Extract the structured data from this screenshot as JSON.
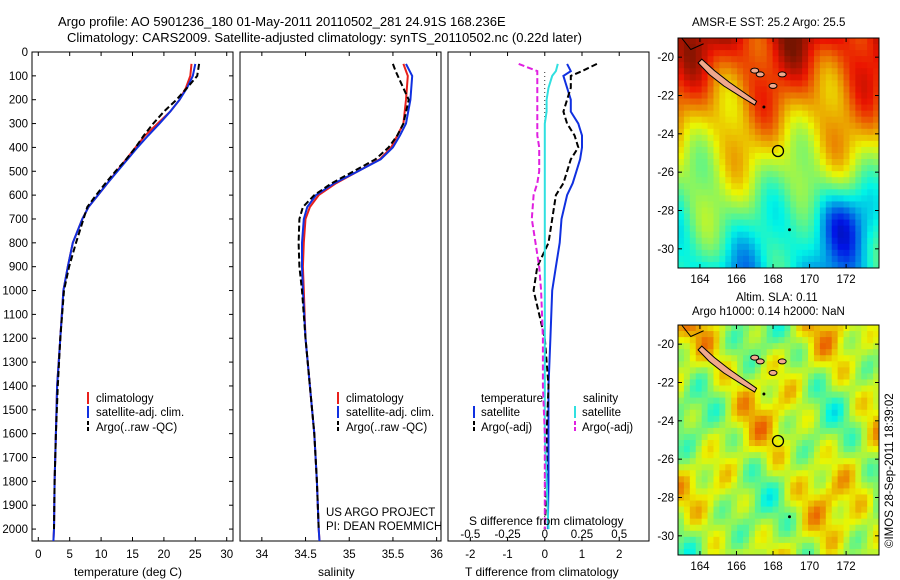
{
  "header": {
    "line1": "Argo profile: AO 5901236_180 01-May-2011 20110502_281 24.91S 168.236E",
    "line2": "Climatology: CARS2009. Satellite-adjusted climatology: synTS_20110502.nc (0.22d later)"
  },
  "colors": {
    "climatology": "#e8201c",
    "satellite": "#1030e0",
    "argo": "#000000",
    "salinity_satellite": "#30e0e0",
    "salinity_argo": "#e020e0",
    "land": "#f0a88c"
  },
  "chart_data": [
    {
      "type": "line",
      "xlabel": "temperature (deg C)",
      "xlim": [
        -1,
        31
      ],
      "ylim": [
        2050,
        0
      ],
      "xticks": [
        0,
        5,
        10,
        15,
        20,
        25,
        30
      ],
      "yticks": [
        0,
        100,
        200,
        300,
        400,
        500,
        600,
        700,
        800,
        900,
        1000,
        1100,
        1200,
        1300,
        1400,
        1500,
        1600,
        1700,
        1800,
        1900,
        2000
      ],
      "ytick_labels": [
        "0",
        "100",
        "200",
        "300",
        "400",
        "500",
        "600",
        "700",
        "800",
        "900",
        "1000",
        "1100",
        "1200",
        "1300",
        "1400",
        "1500",
        "1600",
        "1700",
        "1800",
        "1900",
        "2000"
      ],
      "legend": [
        "climatology",
        "satellite-adj. clim.",
        "Argo(..raw -QC)"
      ],
      "series": [
        {
          "name": "climatology",
          "color": "#e8201c",
          "style": "solid",
          "x": [
            24.4,
            24.2,
            23.5,
            22.5,
            21,
            19,
            17,
            15.5,
            14,
            12.5,
            11,
            9.5,
            8,
            7,
            5.5,
            4.7,
            4,
            3.5,
            3,
            2.8,
            2.6,
            2.5,
            2.4
          ],
          "y": [
            50,
            100,
            150,
            200,
            250,
            300,
            350,
            400,
            450,
            500,
            550,
            600,
            650,
            700,
            800,
            900,
            1000,
            1200,
            1400,
            1600,
            1800,
            2000,
            2050
          ]
        },
        {
          "name": "satellite-adj. clim.",
          "color": "#1030e0",
          "style": "solid",
          "x": [
            25,
            24.6,
            23.7,
            22.5,
            21,
            19.3,
            17.5,
            15.8,
            14.2,
            12.6,
            11,
            9.5,
            8,
            7,
            5.5,
            4.7,
            4,
            3.5,
            3,
            2.8,
            2.6,
            2.5,
            2.4
          ],
          "y": [
            50,
            100,
            150,
            200,
            250,
            300,
            350,
            400,
            450,
            500,
            550,
            600,
            650,
            700,
            800,
            900,
            1000,
            1200,
            1400,
            1600,
            1800,
            2000,
            2050
          ]
        },
        {
          "name": "Argo(..raw -QC)",
          "color": "#000000",
          "style": "dashed",
          "x": [
            25.6,
            25.3,
            23.7,
            22,
            20,
            18.3,
            16.8,
            15.5,
            14,
            12.3,
            10.7,
            9.2,
            7.8,
            7.2,
            6,
            4.9,
            4.1,
            3.5,
            3.1,
            2.8,
            2.6,
            2.5
          ],
          "y": [
            50,
            100,
            150,
            200,
            250,
            300,
            350,
            400,
            450,
            500,
            550,
            600,
            650,
            700,
            800,
            900,
            1000,
            1200,
            1400,
            1600,
            1800,
            2000
          ]
        }
      ]
    },
    {
      "type": "line",
      "xlabel": "salinity",
      "xlim": [
        33.75,
        36.05
      ],
      "ylim": [
        2050,
        0
      ],
      "xticks": [
        34,
        34.5,
        35,
        35.5,
        36
      ],
      "xtick_labels": [
        "34",
        "34.5",
        "35",
        "35.5",
        "36"
      ],
      "legend": [
        "climatology",
        "satellite-adj. clim.",
        "Argo(..raw -QC)"
      ],
      "annotation": [
        "US ARGO PROJECT",
        "PI: DEAN ROEMMICH"
      ],
      "series": [
        {
          "name": "climatology",
          "color": "#e8201c",
          "style": "solid",
          "x": [
            35.62,
            35.67,
            35.65,
            35.62,
            35.55,
            35.48,
            35.35,
            35.1,
            34.85,
            34.65,
            34.55,
            34.5,
            34.48,
            34.47,
            34.48,
            34.5,
            34.55,
            34.6,
            34.63,
            34.65,
            34.66
          ],
          "y": [
            50,
            100,
            200,
            300,
            350,
            400,
            450,
            500,
            550,
            600,
            650,
            700,
            800,
            900,
            1000,
            1200,
            1400,
            1600,
            1800,
            2000,
            2050
          ]
        },
        {
          "name": "satellite-adj. clim.",
          "color": "#1030e0",
          "style": "solid",
          "x": [
            35.65,
            35.72,
            35.7,
            35.65,
            35.58,
            35.5,
            35.36,
            35.1,
            34.83,
            34.62,
            34.52,
            34.48,
            34.46,
            34.46,
            34.47,
            34.5,
            34.55,
            34.6,
            34.63,
            34.65,
            34.66
          ],
          "y": [
            50,
            100,
            200,
            300,
            350,
            400,
            450,
            500,
            550,
            600,
            650,
            700,
            800,
            900,
            1000,
            1200,
            1400,
            1600,
            1800,
            2000,
            2050
          ]
        },
        {
          "name": "Argo(..raw -QC)",
          "color": "#000000",
          "style": "dashed",
          "x": [
            35.5,
            35.53,
            35.68,
            35.62,
            35.55,
            35.45,
            35.3,
            35.05,
            34.8,
            34.6,
            34.47,
            34.43,
            34.42,
            34.43,
            34.46,
            34.5,
            34.55,
            34.6,
            34.63,
            34.65
          ],
          "y": [
            50,
            80,
            200,
            300,
            350,
            400,
            450,
            500,
            550,
            600,
            650,
            700,
            800,
            900,
            1000,
            1200,
            1400,
            1600,
            1800,
            2000
          ]
        }
      ]
    },
    {
      "type": "line",
      "xlabel": "T difference from climatology",
      "xlabel_top": "S difference from climatology",
      "xlim": [
        -2.6,
        2.8
      ],
      "ylim": [
        2050,
        0
      ],
      "xticks_bottom": [
        -2,
        -1,
        0,
        1,
        2
      ],
      "xticks_top": [
        "-0.5",
        "-0.25",
        "0",
        "0.25",
        "0.5"
      ],
      "legend_headers": [
        "temperature",
        "salinity"
      ],
      "legend": [
        "satellite",
        "Argo(-adj)",
        "satellite",
        "Argo(-adj)"
      ],
      "series": [
        {
          "name": "satellite",
          "group": "temperature",
          "color": "#1030e0",
          "style": "solid",
          "x": [
            0.6,
            0.7,
            0.5,
            0.6,
            0.7,
            0.7,
            0.9,
            1.0,
            1.0,
            0.95,
            0.85,
            0.75,
            0.6,
            0.45,
            0.4,
            0.3,
            0.2,
            0.15,
            0.1,
            0.1,
            0.1,
            0.08
          ],
          "y": [
            50,
            80,
            100,
            150,
            200,
            250,
            300,
            350,
            400,
            450,
            500,
            550,
            600,
            700,
            800,
            900,
            1000,
            1200,
            1400,
            1600,
            1800,
            2000
          ]
        },
        {
          "name": "Argo(-adj)",
          "group": "temperature",
          "color": "#000000",
          "style": "dashed",
          "x": [
            1.4,
            1.0,
            0.7,
            0.7,
            0.6,
            0.5,
            0.6,
            0.8,
            0.9,
            0.7,
            0.6,
            0.5,
            0.3,
            0.2,
            0.1,
            -0.2,
            -0.3,
            0,
            0.1,
            0.05,
            0.05,
            0
          ],
          "y": [
            50,
            80,
            100,
            150,
            200,
            250,
            300,
            350,
            400,
            450,
            500,
            550,
            600,
            700,
            800,
            900,
            1000,
            1200,
            1400,
            1600,
            1800,
            2000
          ]
        },
        {
          "name": "satellite",
          "group": "salinity",
          "color": "#30e0e0",
          "style": "solid",
          "x": [
            0.35,
            0.3,
            0.2,
            0.1,
            0.05,
            0.05,
            0,
            0,
            0,
            0,
            0,
            0,
            0,
            0,
            0,
            0,
            0,
            0,
            0,
            0,
            0.05,
            0.1
          ],
          "y": [
            50,
            80,
            100,
            150,
            200,
            250,
            300,
            350,
            400,
            450,
            500,
            550,
            600,
            700,
            800,
            900,
            1000,
            1200,
            1400,
            1600,
            1800,
            2000
          ]
        },
        {
          "name": "Argo(-adj)",
          "group": "salinity",
          "color": "#e020e0",
          "style": "dashed",
          "x": [
            -0.7,
            -0.2,
            -0.2,
            -0.2,
            -0.2,
            -0.2,
            -0.2,
            -0.2,
            -0.15,
            -0.15,
            -0.15,
            -0.2,
            -0.3,
            -0.35,
            -0.25,
            -0.15,
            -0.1,
            -0.05,
            -0.05,
            0,
            0,
            0
          ],
          "y": [
            50,
            80,
            100,
            150,
            200,
            250,
            300,
            350,
            400,
            450,
            500,
            550,
            600,
            700,
            800,
            900,
            1000,
            1200,
            1400,
            1600,
            1800,
            2000
          ]
        }
      ]
    },
    {
      "type": "heatmap",
      "title": "AMSR-E SST: 25.2 Argo: 25.5",
      "xticks": [
        164,
        166,
        168,
        170,
        172
      ],
      "yticks": [
        -20,
        -22,
        -24,
        -26,
        -28,
        -30
      ],
      "xlim": [
        162.8,
        173.8
      ],
      "ylim": [
        -31,
        -19
      ]
    },
    {
      "type": "heatmap",
      "title_lines": [
        "Altim. SLA: 0.11",
        "Argo h1000: 0.14 h2000: NaN"
      ],
      "xticks": [
        164,
        166,
        168,
        170,
        172
      ],
      "yticks": [
        -20,
        -22,
        -24,
        -26,
        -28,
        -30
      ],
      "xlim": [
        162.8,
        173.8
      ],
      "ylim": [
        -31,
        -19
      ]
    }
  ],
  "side_label": "©IMOS 28-Sep-2011 18:39:02"
}
